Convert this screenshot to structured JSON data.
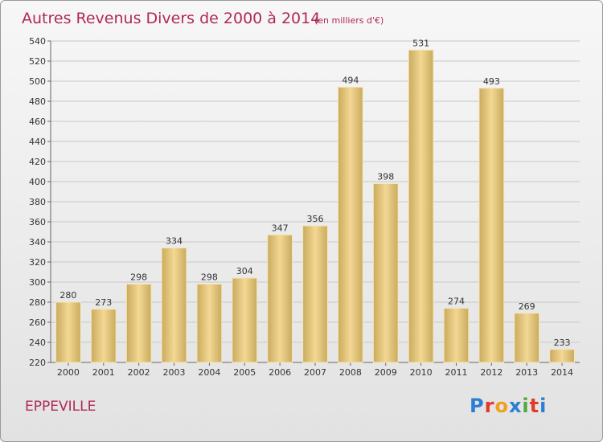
{
  "chart_data": {
    "type": "bar",
    "title": "Autres Revenus Divers de 2000 à 2014",
    "subtitle": "(en milliers d'€)",
    "categories": [
      "2000",
      "2001",
      "2002",
      "2003",
      "2004",
      "2005",
      "2006",
      "2007",
      "2008",
      "2009",
      "2010",
      "2011",
      "2012",
      "2013",
      "2014"
    ],
    "values": [
      280,
      273,
      298,
      334,
      298,
      304,
      347,
      356,
      494,
      398,
      531,
      274,
      493,
      269,
      233
    ],
    "ylim": [
      220,
      540
    ],
    "yticks": [
      220,
      240,
      260,
      280,
      300,
      320,
      340,
      360,
      380,
      400,
      420,
      440,
      460,
      480,
      500,
      520,
      540
    ],
    "grid": true,
    "bar_color": "#e8c878"
  },
  "footer": {
    "town": "EPPEVILLE",
    "logo_letters": [
      "P",
      "r",
      "o",
      "x",
      "i",
      "t",
      "i"
    ],
    "logo_colors": [
      "#2a7fd4",
      "#e23a2a",
      "#f0a020",
      "#2a7fd4",
      "#4fa83a",
      "#e23a2a",
      "#2a7fd4"
    ]
  }
}
